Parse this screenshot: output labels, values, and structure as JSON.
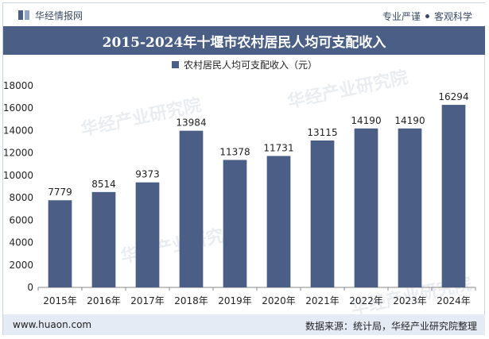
{
  "header": {
    "brand": "华经情报网",
    "slogan_left": "专业严谨",
    "slogan_right": "客观科学"
  },
  "title": "2015-2024年十堰市农村居民人均可支配收入",
  "legend": {
    "label": "农村居民人均可支配收入（元）"
  },
  "footer": {
    "site": "www.huaon.com",
    "source": "数据来源：统计局，华经产业研究院整理"
  },
  "watermark": "华经产业研究院",
  "colors": {
    "bar": "#4a5e86",
    "title_bg": "#4a5e86",
    "footer_bg": "#e5ebf5"
  },
  "chart_data": {
    "type": "bar",
    "title": "2015-2024年十堰市农村居民人均可支配收入",
    "categories": [
      "2015年",
      "2016年",
      "2017年",
      "2018年",
      "2019年",
      "2020年",
      "2021年",
      "2022年",
      "2023年",
      "2024年"
    ],
    "series": [
      {
        "name": "农村居民人均可支配收入（元）",
        "values": [
          7779,
          8514,
          9373,
          13984,
          11378,
          11731,
          13115,
          14190,
          14190,
          16294
        ]
      }
    ],
    "yticks": [
      0,
      2000,
      4000,
      6000,
      8000,
      10000,
      12000,
      14000,
      16000,
      18000
    ],
    "ylim": [
      0,
      18000
    ],
    "xlabel": "",
    "ylabel": "",
    "grid": false,
    "legend_position": "top"
  }
}
